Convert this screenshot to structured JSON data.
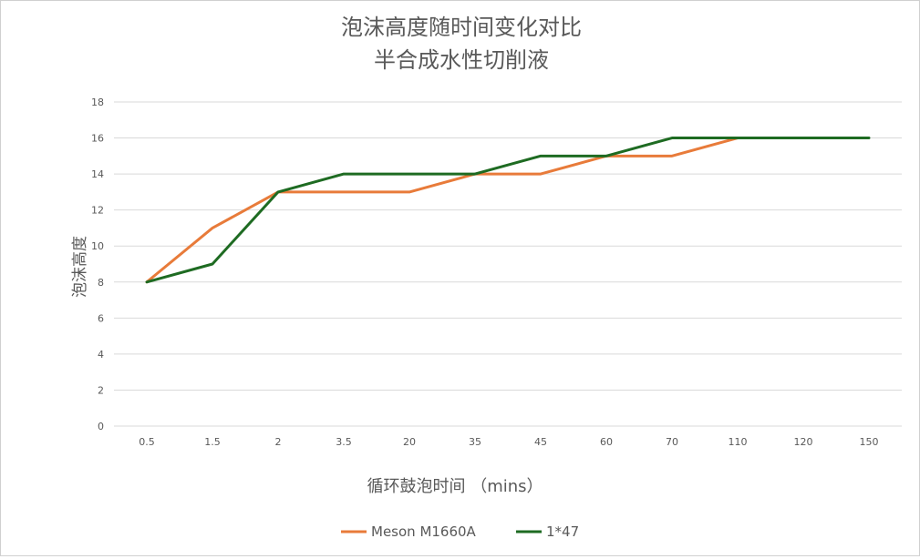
{
  "chart_data": {
    "type": "line",
    "title": "泡沫高度随时间变化对比",
    "subtitle": "半合成水性切削液",
    "xlabel": "循环鼓泡时间 （mins）",
    "ylabel": "泡沫高度",
    "categories": [
      "0.5",
      "1.5",
      "2",
      "3.5",
      "20",
      "35",
      "45",
      "60",
      "70",
      "110",
      "120",
      "150"
    ],
    "y_ticks": [
      "0",
      "2",
      "4",
      "6",
      "8",
      "10",
      "12",
      "14",
      "16",
      "18"
    ],
    "ylim": [
      0,
      18
    ],
    "grid": true,
    "legend_position": "bottom",
    "series": [
      {
        "name": "Meson M1660A",
        "color": "#E87B3A",
        "x": [
          "0.5",
          "1.5",
          "2",
          "3.5",
          "20",
          "35",
          "45",
          "60",
          "70",
          "110"
        ],
        "values": [
          8,
          11,
          13,
          13,
          13,
          14,
          14,
          15,
          15,
          16
        ]
      },
      {
        "name": "1*47",
        "color": "#1E6B22",
        "x": [
          "0.5",
          "1.5",
          "2",
          "3.5",
          "20",
          "35",
          "45",
          "60",
          "70",
          "110",
          "120",
          "150"
        ],
        "values": [
          8,
          9,
          13,
          14,
          14,
          14,
          15,
          15,
          16,
          16,
          16,
          16
        ]
      }
    ]
  }
}
